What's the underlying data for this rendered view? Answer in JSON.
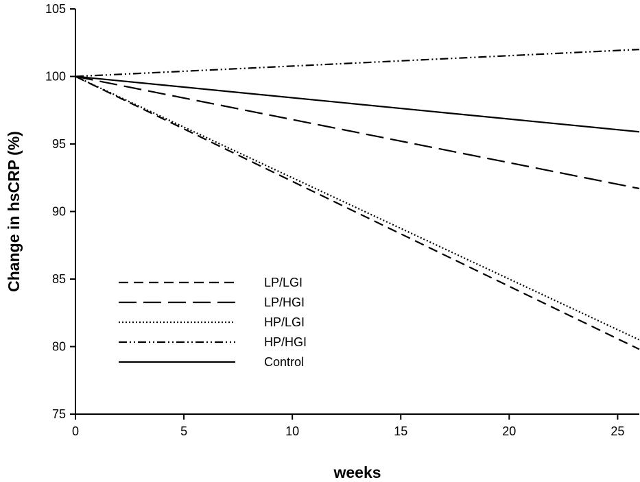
{
  "chart_data": {
    "type": "line",
    "title": "",
    "xlabel": "weeks",
    "ylabel": "Change in hsCRP (%)",
    "xlim": [
      0,
      26
    ],
    "ylim": [
      75,
      105
    ],
    "xticks": [
      0,
      5,
      10,
      15,
      20,
      25
    ],
    "yticks": [
      75,
      80,
      85,
      90,
      95,
      100,
      105
    ],
    "grid": false,
    "legend_position": "lower-left",
    "series": [
      {
        "name": "LP/LGI",
        "style": "dashed",
        "color": "#000000",
        "x": [
          0,
          26
        ],
        "y": [
          100,
          79.8
        ]
      },
      {
        "name": "LP/HGI",
        "style": "long-dashed",
        "color": "#000000",
        "x": [
          0,
          26
        ],
        "y": [
          100,
          91.7
        ]
      },
      {
        "name": "HP/LGI",
        "style": "dotted",
        "color": "#000000",
        "x": [
          0,
          26
        ],
        "y": [
          100,
          80.5
        ]
      },
      {
        "name": "HP/HGI",
        "style": "dash-dot-dot",
        "color": "#000000",
        "x": [
          0,
          26
        ],
        "y": [
          100,
          102
        ]
      },
      {
        "name": "Control",
        "style": "solid",
        "color": "#000000",
        "x": [
          0,
          26
        ],
        "y": [
          100,
          95.9
        ]
      }
    ]
  }
}
